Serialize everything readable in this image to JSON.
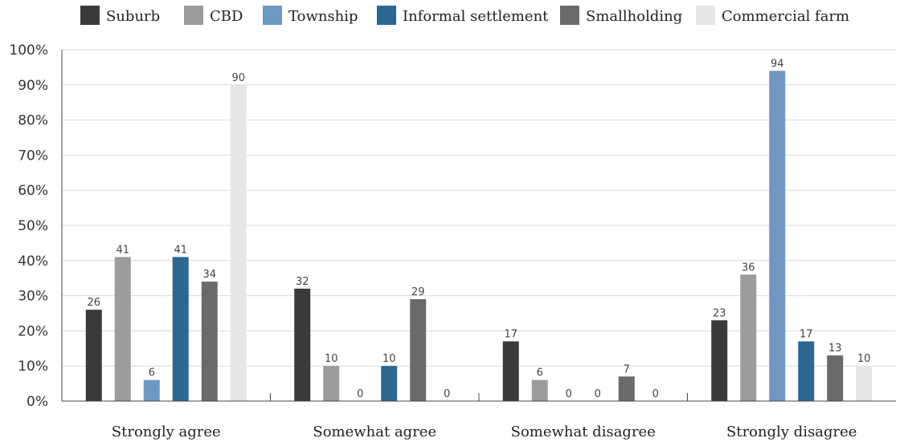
{
  "chart_data": {
    "type": "bar",
    "categories": [
      "Strongly agree",
      "Somewhat agree",
      "Somewhat disagree",
      "Strongly disagree"
    ],
    "series": [
      {
        "name": "Suburb",
        "color": "#3a3a3a",
        "values": [
          26,
          32,
          17,
          23
        ]
      },
      {
        "name": "CBD",
        "color": "#9c9b9d",
        "values": [
          41,
          10,
          6,
          36
        ]
      },
      {
        "name": "Township",
        "color": "#6f97c4",
        "values": [
          6,
          0,
          0,
          94
        ]
      },
      {
        "name": "Informal settlement",
        "color": "#2d6690",
        "values": [
          41,
          10,
          0,
          17
        ]
      },
      {
        "name": "Smallholding",
        "color": "#6b6a6b",
        "values": [
          34,
          29,
          7,
          13
        ]
      },
      {
        "name": "Commercial farm",
        "color": "#e6e6e6",
        "values": [
          90,
          0,
          0,
          10
        ]
      }
    ],
    "y_ticks": [
      "0%",
      "10%",
      "20%",
      "30%",
      "40%",
      "50%",
      "60%",
      "70%",
      "80%",
      "90%",
      "100%"
    ],
    "ylim": [
      0,
      100
    ],
    "grid": true,
    "legend_position": "top"
  }
}
